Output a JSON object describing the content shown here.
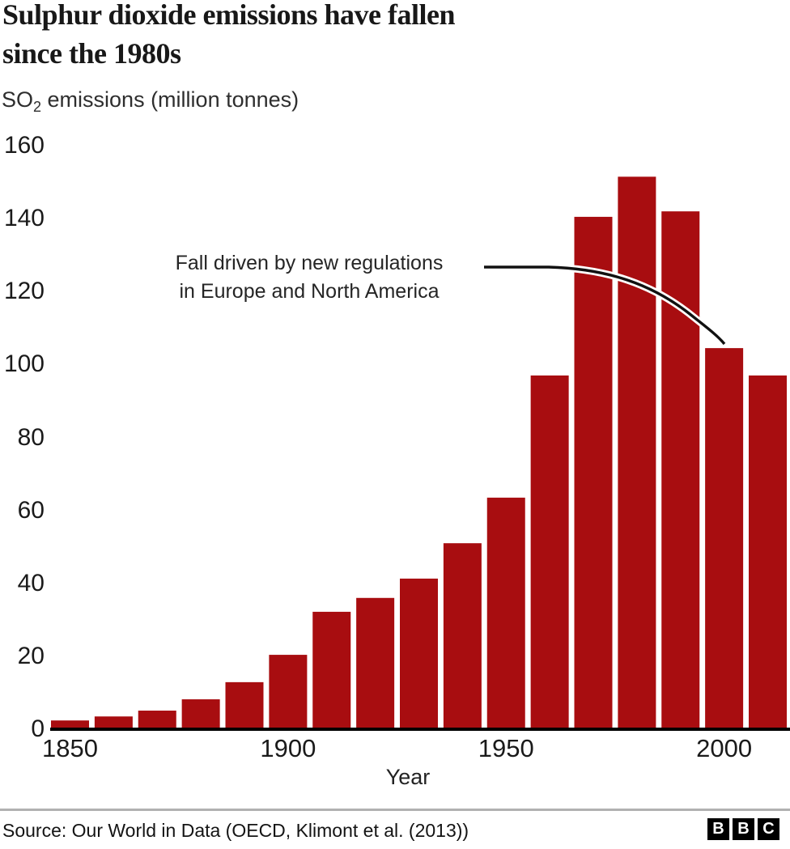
{
  "title": {
    "line1": "Sulphur dioxide emissions have fallen",
    "line2": "since the 1980s"
  },
  "subtitle": {
    "prefix": "SO",
    "subscript": "2",
    "suffix": " emissions (million tonnes)"
  },
  "annotation": {
    "line1": "Fall driven by new regulations",
    "line2": "in Europe and North America"
  },
  "axis": {
    "x_title": "Year"
  },
  "footer": {
    "source": "Source: Our World in Data (OECD, Klimont et al. (2013))",
    "logo_letters": [
      "B",
      "B",
      "C"
    ]
  },
  "colors": {
    "bar": "#a80d10",
    "axis": "#000000",
    "leader_line": "#111111",
    "leader_halo": "#ffffff",
    "text": "#1a1a1a",
    "divider": "#b1b1b1"
  },
  "chart_data": {
    "type": "bar",
    "title": "Sulphur dioxide emissions have fallen since the 1980s",
    "ylabel": "SO2 emissions (million tonnes)",
    "xlabel": "Year",
    "categories": [
      1850,
      1860,
      1870,
      1880,
      1890,
      1900,
      1910,
      1920,
      1930,
      1940,
      1950,
      1960,
      1970,
      1980,
      1990,
      2000,
      2010
    ],
    "values": [
      2.4,
      3.5,
      5.1,
      8.2,
      12.9,
      20.4,
      32.2,
      36.0,
      41.3,
      51.0,
      63.5,
      97.0,
      140.5,
      151.5,
      142.0,
      104.5,
      97.0
    ],
    "yticks": [
      0,
      20,
      40,
      60,
      80,
      100,
      120,
      140,
      160
    ],
    "xticks": [
      1850,
      1900,
      1950,
      2000
    ],
    "ylim": [
      0,
      160
    ],
    "grid": false,
    "legend": "none",
    "annotation_text": "Fall driven by new regulations in Europe and North America",
    "annotation_points_to": 2000
  }
}
